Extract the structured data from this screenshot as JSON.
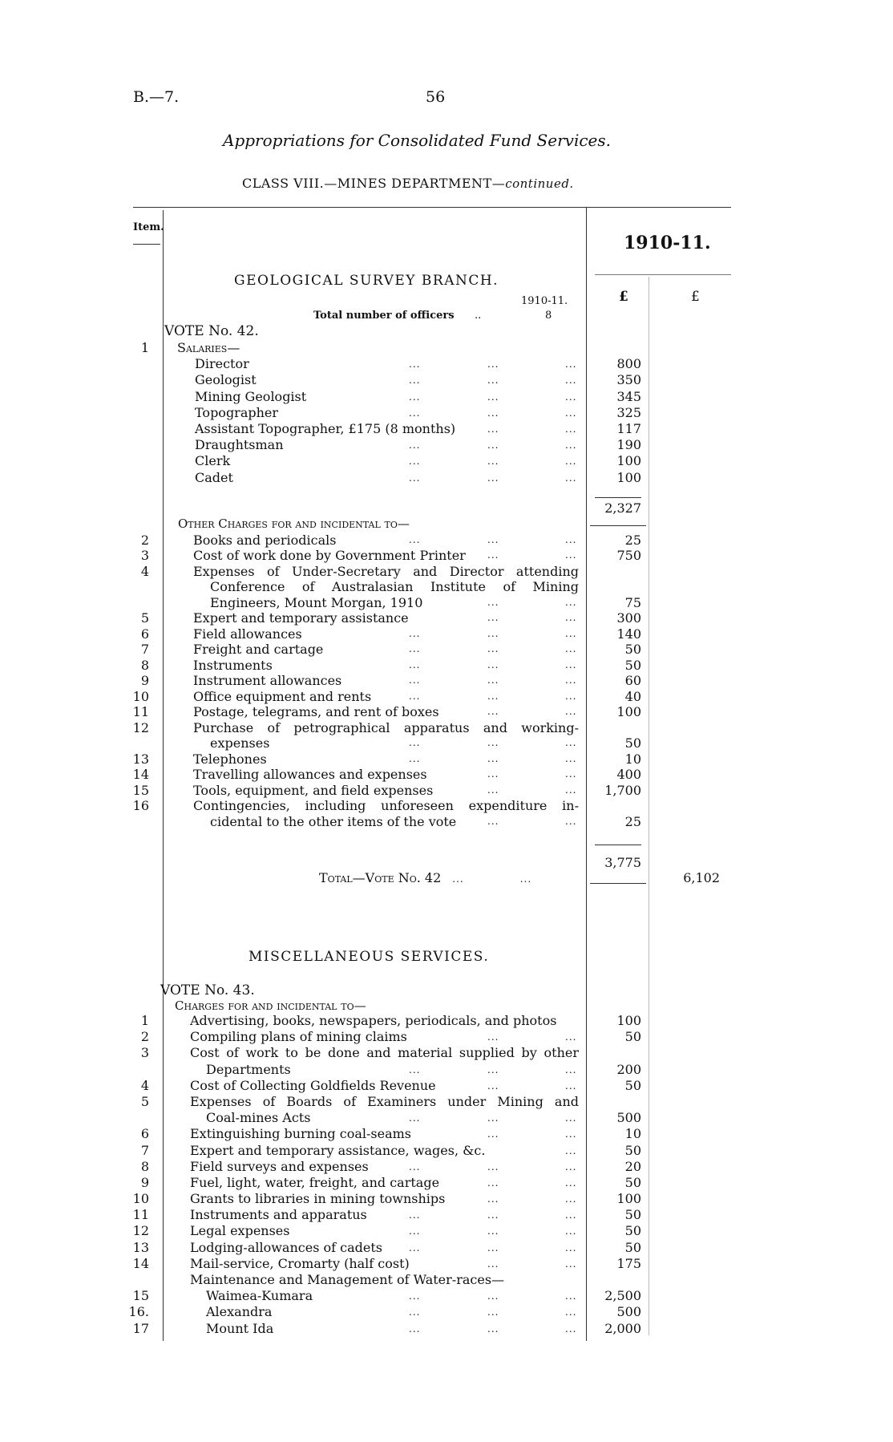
{
  "header": {
    "ref": "B.—7.",
    "page": "56",
    "title": "Appropriations for Consolidated Fund Services.",
    "class_line": "CLASS VIII.—MINES DEPARTMENT—",
    "class_cont": "continued."
  },
  "columns": {
    "item": "Item.",
    "year": "1910-11.",
    "pound1": "£",
    "pound2": "£"
  },
  "geo": {
    "title": "GEOLOGICAL SURVEY BRANCH.",
    "officers_year": "1910-11.",
    "officers_label": "Total number of officers",
    "officers_dots": "..",
    "officers_count": "8",
    "vote": "VOTE No. 42.",
    "salaries": {
      "item": "1",
      "heading": "Salaries—",
      "rows": [
        {
          "text": "Director",
          "amount": "800"
        },
        {
          "text": "Geologist",
          "amount": "350"
        },
        {
          "text": "Mining Geologist",
          "amount": "345"
        },
        {
          "text": "Topographer",
          "amount": "325"
        },
        {
          "text": "Assistant Topographer, £175 (8 months)",
          "amount": "117"
        },
        {
          "text": "Draughtsman",
          "amount": "190"
        },
        {
          "text": "Clerk",
          "amount": "100"
        },
        {
          "text": "Cadet",
          "amount": "100"
        }
      ],
      "subtotal": "2,327"
    },
    "other": {
      "heading": "Other Charges for and incidental to—",
      "rows": [
        {
          "item": "2",
          "lines": [
            "Books and periodicals"
          ],
          "amount": "25"
        },
        {
          "item": "3",
          "lines": [
            "Cost of work done by Government Printer"
          ],
          "amount": "750"
        },
        {
          "item": "4",
          "lines": [
            "Expenses of Under-Secretary and Director attending",
            "Conference of Australasian Institute of Mining",
            "Engineers, Mount Morgan, 1910"
          ],
          "amount": "75"
        },
        {
          "item": "5",
          "lines": [
            "Expert and temporary assistance"
          ],
          "amount": "300"
        },
        {
          "item": "6",
          "lines": [
            "Field allowances"
          ],
          "amount": "140"
        },
        {
          "item": "7",
          "lines": [
            "Freight and cartage"
          ],
          "amount": "50"
        },
        {
          "item": "8",
          "lines": [
            "Instruments"
          ],
          "amount": "50"
        },
        {
          "item": "9",
          "lines": [
            "Instrument allowances"
          ],
          "amount": "60"
        },
        {
          "item": "10",
          "lines": [
            "Office equipment and rents"
          ],
          "amount": "40"
        },
        {
          "item": "11",
          "lines": [
            "Postage, telegrams, and rent of boxes"
          ],
          "amount": "100"
        },
        {
          "item": "12",
          "lines": [
            "Purchase of petrographical apparatus and working-",
            "expenses"
          ],
          "amount": "50"
        },
        {
          "item": "13",
          "lines": [
            "Telephones"
          ],
          "amount": "10"
        },
        {
          "item": "14",
          "lines": [
            "Travelling allowances and expenses"
          ],
          "amount": "400"
        },
        {
          "item": "15",
          "lines": [
            "Tools, equipment, and field expenses"
          ],
          "amount": "1,700"
        },
        {
          "item": "16",
          "lines": [
            "Contingencies, including unforeseen expenditure in-",
            "cidental to the other items of the vote"
          ],
          "amount": "25"
        }
      ],
      "subtotal": "3,775"
    },
    "total_label": "Total—Vote No. 42",
    "total": "6,102"
  },
  "misc": {
    "title": "MISCELLANEOUS SERVICES.",
    "vote": "VOTE No. 43.",
    "heading": "Charges for and incidental to—",
    "rows": [
      {
        "item": "1",
        "lines": [
          "Advertising, books, newspapers, periodicals, and photos"
        ],
        "amount": "100",
        "noleader": true
      },
      {
        "item": "2",
        "lines": [
          "Compiling plans of mining claims"
        ],
        "amount": "50"
      },
      {
        "item": "3",
        "lines": [
          "Cost of work to be done and material supplied by other",
          "Departments"
        ],
        "amount": "200"
      },
      {
        "item": "4",
        "lines": [
          "Cost of Collecting Goldfields Revenue"
        ],
        "amount": "50"
      },
      {
        "item": "5",
        "lines": [
          "Expenses of Boards of Examiners under Mining and",
          "Coal-mines Acts"
        ],
        "amount": "500"
      },
      {
        "item": "6",
        "lines": [
          "Extinguishing burning coal-seams"
        ],
        "amount": "10"
      },
      {
        "item": "7",
        "lines": [
          "Expert and temporary assistance, wages, &c."
        ],
        "amount": "50"
      },
      {
        "item": "8",
        "lines": [
          "Field surveys and expenses"
        ],
        "amount": "20"
      },
      {
        "item": "9",
        "lines": [
          "Fuel, light, water, freight, and cartage"
        ],
        "amount": "50"
      },
      {
        "item": "10",
        "lines": [
          "Grants to libraries in mining townships"
        ],
        "amount": "100"
      },
      {
        "item": "11",
        "lines": [
          "Instruments and apparatus"
        ],
        "amount": "50"
      },
      {
        "item": "12",
        "lines": [
          "Legal expenses"
        ],
        "amount": "50"
      },
      {
        "item": "13",
        "lines": [
          "Lodging-allowances of cadets"
        ],
        "amount": "50"
      },
      {
        "item": "14",
        "lines": [
          "Mail-service, Cromarty (half cost)"
        ],
        "amount": "175"
      },
      {
        "item": "",
        "lines": [
          "Maintenance and Management of Water-races—"
        ],
        "amount": "",
        "noleader": true
      },
      {
        "item": "15",
        "lines": [
          "Waimea-Kumara"
        ],
        "amount": "2,500",
        "sub": true
      },
      {
        "item": "16.",
        "lines": [
          "Alexandra"
        ],
        "amount": "500",
        "sub": true
      },
      {
        "item": "17",
        "lines": [
          "Mount Ida"
        ],
        "amount": "2,000",
        "sub": true
      }
    ]
  }
}
